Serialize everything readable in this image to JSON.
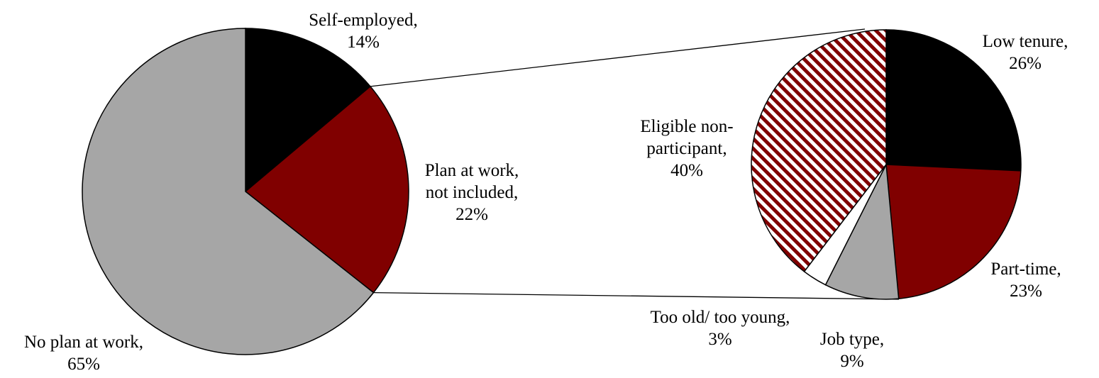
{
  "chart_data": [
    {
      "type": "pie",
      "slices": [
        {
          "label_lines": [
            "Self-employed,",
            "14%"
          ],
          "value": 14,
          "color": "#000000",
          "pattern": "solid"
        },
        {
          "label_lines": [
            "Plan at work,",
            "not included,",
            "22%"
          ],
          "value": 22,
          "color": "#800000",
          "pattern": "solid"
        },
        {
          "label_lines": [
            "No plan at work,",
            "65%"
          ],
          "value": 65,
          "color": "#a6a6a6",
          "pattern": "solid"
        }
      ]
    },
    {
      "type": "pie",
      "slices": [
        {
          "label_lines": [
            "Low tenure,",
            "26%"
          ],
          "value": 26,
          "color": "#000000",
          "pattern": "solid"
        },
        {
          "label_lines": [
            "Part-time,",
            "23%"
          ],
          "value": 23,
          "color": "#800000",
          "pattern": "solid"
        },
        {
          "label_lines": [
            "Job type,",
            "9%"
          ],
          "value": 9,
          "color": "#a6a6a6",
          "pattern": "solid"
        },
        {
          "label_lines": [
            "Too old/ too young,",
            "3%"
          ],
          "value": 3,
          "color": "#ffffff",
          "pattern": "solid"
        },
        {
          "label_lines": [
            "Eligible non-",
            "participant,",
            "40%"
          ],
          "value": 40,
          "color": "#800000",
          "pattern": "diagonal-stripes"
        }
      ]
    }
  ],
  "colors": {
    "slice_outline": "#000000",
    "connector_line": "#000000",
    "stripe_background": "#ffffff"
  }
}
